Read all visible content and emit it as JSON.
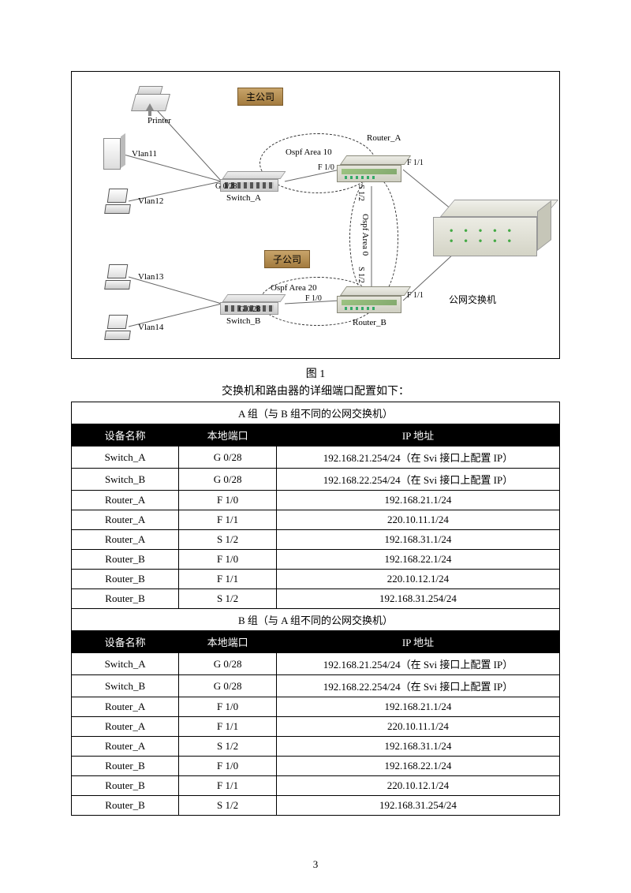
{
  "figure": {
    "caption": "图 1",
    "intro": "交换机和路由器的详细端口配置如下：",
    "labels": {
      "printer": "Printer",
      "vlan11": "Vlan11",
      "vlan12": "Vlan12",
      "vlan13": "Vlan13",
      "vlan14": "Vlan14",
      "switch_a": "Switch_A",
      "switch_b": "Switch_B",
      "router_a": "Router_A",
      "router_b": "Router_B",
      "area10": "Ospf Area 10",
      "area20": "Ospf Area 20",
      "area0": "Ospf Area 0",
      "g028_a": "G 0/28",
      "g028_b": "G 0/28",
      "f10_a": "F 1/0",
      "f10_b": "F 1/0",
      "f11_a": "F 1/1",
      "f11_b": "F 1/1",
      "s12_a": "S 1/2",
      "s12_b": "S 1/2",
      "pubswitch": "公网交换机",
      "tag_main": "主公司",
      "tag_sub": "子公司"
    }
  },
  "tables": {
    "groupA_title": "A 组（与 B 组不同的公网交换机）",
    "groupB_title": "B 组（与 A 组不同的公网交换机）",
    "headers": {
      "dev": "设备名称",
      "port": "本地端口",
      "ip": "IP 地址"
    },
    "groupA": [
      {
        "dev": "Switch_A",
        "port": "G 0/28",
        "ip": "192.168.21.254/24（在 Svi 接口上配置 IP）"
      },
      {
        "dev": "Switch_B",
        "port": "G 0/28",
        "ip": "192.168.22.254/24（在 Svi 接口上配置 IP）"
      },
      {
        "dev": "Router_A",
        "port": "F 1/0",
        "ip": "192.168.21.1/24"
      },
      {
        "dev": "Router_A",
        "port": "F 1/1",
        "ip": "220.10.11.1/24"
      },
      {
        "dev": "Router_A",
        "port": "S 1/2",
        "ip": "192.168.31.1/24"
      },
      {
        "dev": "Router_B",
        "port": "F 1/0",
        "ip": "192.168.22.1/24"
      },
      {
        "dev": "Router_B",
        "port": "F 1/1",
        "ip": "220.10.12.1/24"
      },
      {
        "dev": "Router_B",
        "port": "S 1/2",
        "ip": "192.168.31.254/24"
      }
    ],
    "groupB": [
      {
        "dev": "Switch_A",
        "port": "G 0/28",
        "ip": "192.168.21.254/24（在 Svi 接口上配置 IP）"
      },
      {
        "dev": "Switch_B",
        "port": "G 0/28",
        "ip": "192.168.22.254/24（在 Svi 接口上配置 IP）"
      },
      {
        "dev": "Router_A",
        "port": "F 1/0",
        "ip": "192.168.21.1/24"
      },
      {
        "dev": "Router_A",
        "port": "F 1/1",
        "ip": "220.10.11.1/24"
      },
      {
        "dev": "Router_A",
        "port": "S 1/2",
        "ip": "192.168.31.1/24"
      },
      {
        "dev": "Router_B",
        "port": "F 1/0",
        "ip": "192.168.22.1/24"
      },
      {
        "dev": "Router_B",
        "port": "F 1/1",
        "ip": "220.10.12.1/24"
      },
      {
        "dev": "Router_B",
        "port": "S 1/2",
        "ip": "192.168.31.254/24"
      }
    ]
  },
  "page_number": "3"
}
